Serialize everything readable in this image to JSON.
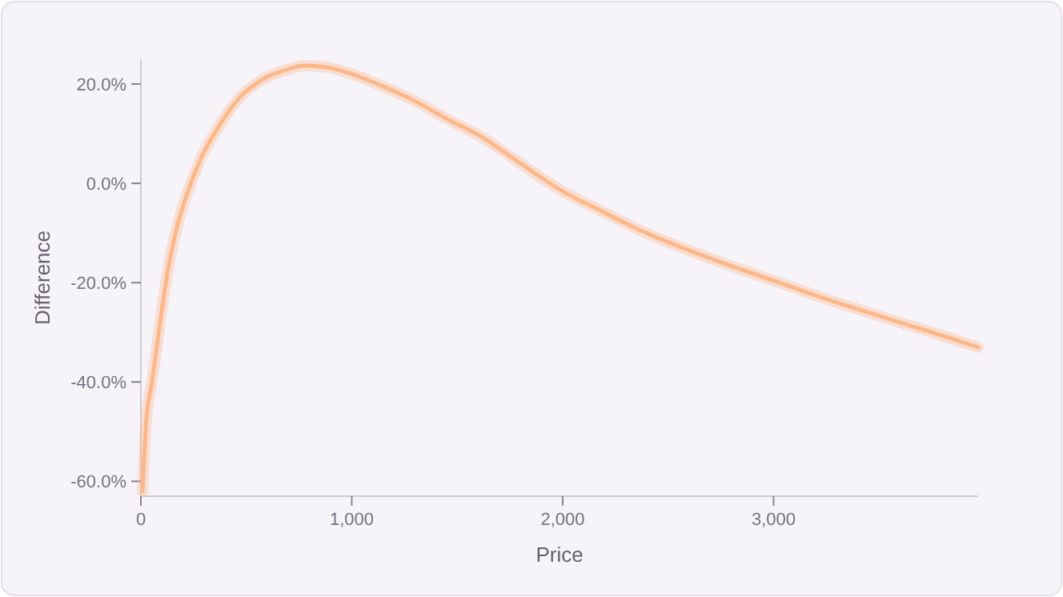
{
  "chart_data": {
    "type": "line",
    "xlabel": "Price",
    "ylabel": "Difference",
    "x": [
      8,
      25,
      53,
      91,
      130,
      167,
      220,
      281,
      370,
      471,
      580,
      699,
      776,
      880,
      1002,
      1150,
      1306,
      1450,
      1610,
      1800,
      2000,
      2180,
      2370,
      2680,
      3000,
      3250,
      3508,
      3750,
      3970
    ],
    "series": [
      {
        "color": "#fdb88a",
        "values": [
          -62,
          -48,
          -40,
          -28,
          -17,
          -9.5,
          -2,
          4.7,
          11.5,
          17.4,
          21,
          23,
          23.7,
          23.4,
          22,
          19.5,
          16.4,
          13,
          9.5,
          4,
          -1.6,
          -5.5,
          -9.5,
          -14.8,
          -19.6,
          -23.3,
          -26.8,
          -30,
          -33
        ]
      }
    ],
    "xlim": [
      0,
      3970
    ],
    "xticks": [
      0,
      {
        "value": 1000,
        "label": "1,000"
      },
      {
        "value": 2000,
        "label": "2,000"
      },
      {
        "value": 3000,
        "label": "3,000"
      }
    ],
    "ylim": [
      -63,
      25
    ],
    "yticks": [
      {
        "value": -60,
        "label": "-60.0%"
      },
      {
        "value": -40,
        "label": "-40.0%"
      },
      {
        "value": -20,
        "label": "-20.0%"
      },
      {
        "value": 0,
        "label": "0.0%"
      },
      {
        "value": 20,
        "label": "20.0%"
      }
    ],
    "line_style": "solid",
    "marker": "none"
  }
}
